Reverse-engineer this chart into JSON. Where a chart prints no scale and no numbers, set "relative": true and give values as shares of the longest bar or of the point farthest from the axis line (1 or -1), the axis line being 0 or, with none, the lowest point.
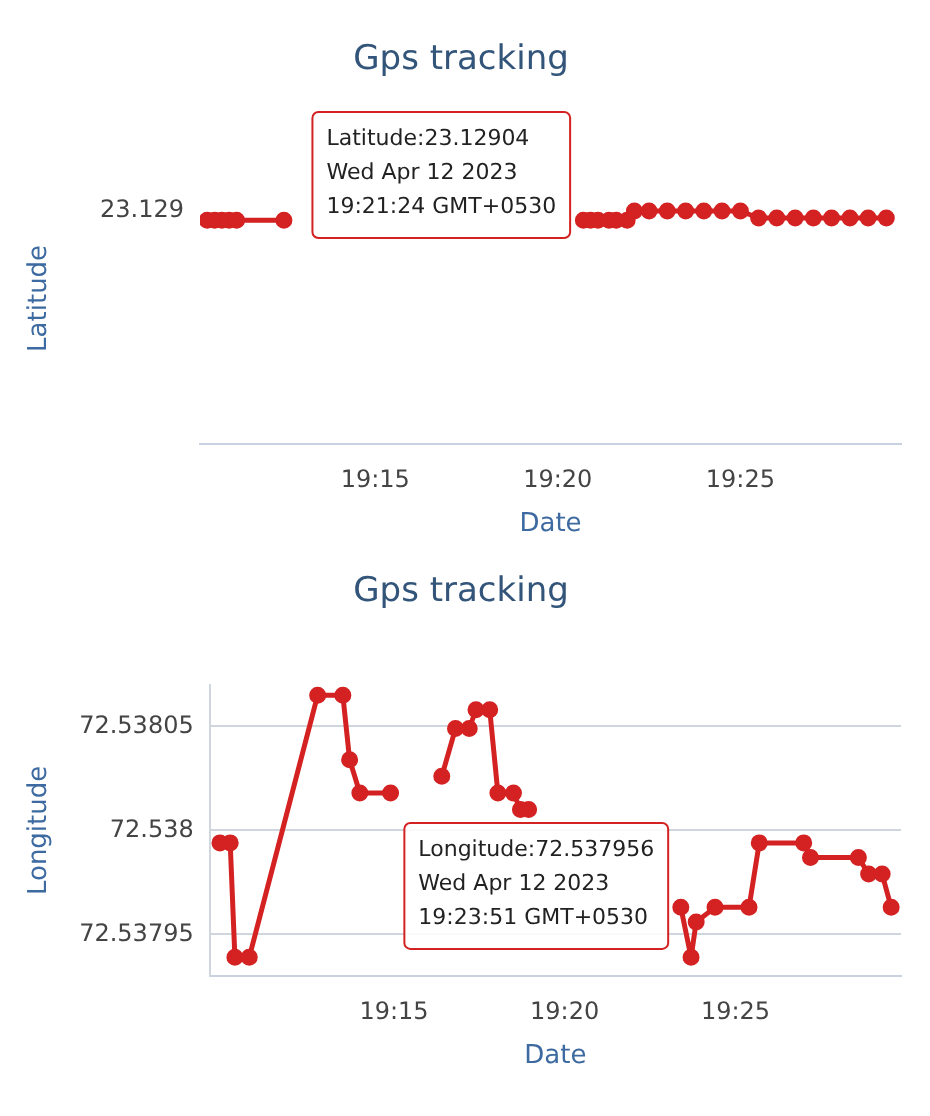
{
  "chart_data": [
    {
      "type": "line",
      "title": "Gps tracking",
      "xlabel": "Date",
      "ylabel": "Latitude",
      "x": [
        19.1733,
        19.1767,
        19.18,
        19.1833,
        19.1867,
        19.2083,
        19.2667,
        19.345,
        19.3483,
        19.3517,
        19.3567,
        19.36,
        19.365,
        19.3683,
        19.375,
        19.3833,
        19.3917,
        19.4,
        19.4083,
        19.4167,
        19.425,
        19.4333,
        19.4417,
        19.45,
        19.4583,
        19.4667,
        19.475,
        19.4833
      ],
      "relative": true,
      "series": [
        {
          "color": "#d42121",
          "values": [
            0.96,
            0.96,
            0.96,
            0.96,
            0.96,
            0.96,
            null,
            0.96,
            0.96,
            0.96,
            0.96,
            0.96,
            0.96,
            1,
            1,
            1,
            1,
            1,
            1,
            1,
            0.97,
            0.97,
            0.97,
            0.97,
            0.97,
            0.97,
            0.97,
            0.97
          ]
        }
      ],
      "xlim": [
        19.17,
        19.49
      ],
      "xticks": [
        {
          "value": 19.25,
          "label": "19:15"
        },
        {
          "value": 19.3333,
          "label": "19:20"
        },
        {
          "value": 19.4167,
          "label": "19:25"
        }
      ],
      "annotations": [
        "23.129",
        "Latitude:23.12904\nWed Apr 12 2023\n19:21:24 GMT+0530"
      ],
      "legend": false,
      "marker": "circle",
      "line_style": "solid"
    },
    {
      "type": "line",
      "title": "Gps tracking",
      "xlabel": "Date",
      "ylabel": "Longitude",
      "x": [
        19.165,
        19.17,
        19.1723,
        19.1793,
        19.2127,
        19.225,
        19.2283,
        19.2333,
        19.2483,
        19.2583,
        19.2733,
        19.28,
        19.2867,
        19.29,
        19.2967,
        19.3007,
        19.3083,
        19.3117,
        19.3157,
        19.35,
        19.39,
        19.395,
        19.3975,
        19.4067,
        19.4233,
        19.4283,
        19.45,
        19.4533,
        19.4767,
        19.4817,
        19.4883,
        19.4927
      ],
      "series": [
        {
          "color": "#d42121",
          "values": [
            72.537994,
            72.537994,
            72.537939,
            72.537939,
            72.538065,
            72.538065,
            72.538034,
            72.538018,
            72.538018,
            null,
            72.538026,
            72.538049,
            72.538049,
            72.538058,
            72.538058,
            72.538018,
            72.538018,
            72.53801,
            72.53801,
            null,
            72.537963,
            72.537939,
            72.537956,
            72.537963,
            72.537963,
            72.537994,
            72.537994,
            72.537987,
            72.537987,
            72.537979,
            72.537979,
            72.537963
          ]
        }
      ],
      "xlim": [
        19.16,
        19.4975
      ],
      "xticks": [
        {
          "value": 19.25,
          "label": "19:15"
        },
        {
          "value": 19.3333,
          "label": "19:20"
        },
        {
          "value": 19.4167,
          "label": "19:25"
        }
      ],
      "ylim": [
        72.53793,
        72.53807
      ],
      "yticks": [
        72.53795,
        72.538,
        72.53805
      ],
      "annotations": [
        {
          "text": "Longitude:72.537956\nWed Apr 12 2023\n19:23:51 GMT+0530",
          "x": 19.3975,
          "y": 72.537956
        }
      ],
      "grid": "y",
      "legend": false,
      "marker": "circle",
      "line_style": "solid"
    }
  ]
}
